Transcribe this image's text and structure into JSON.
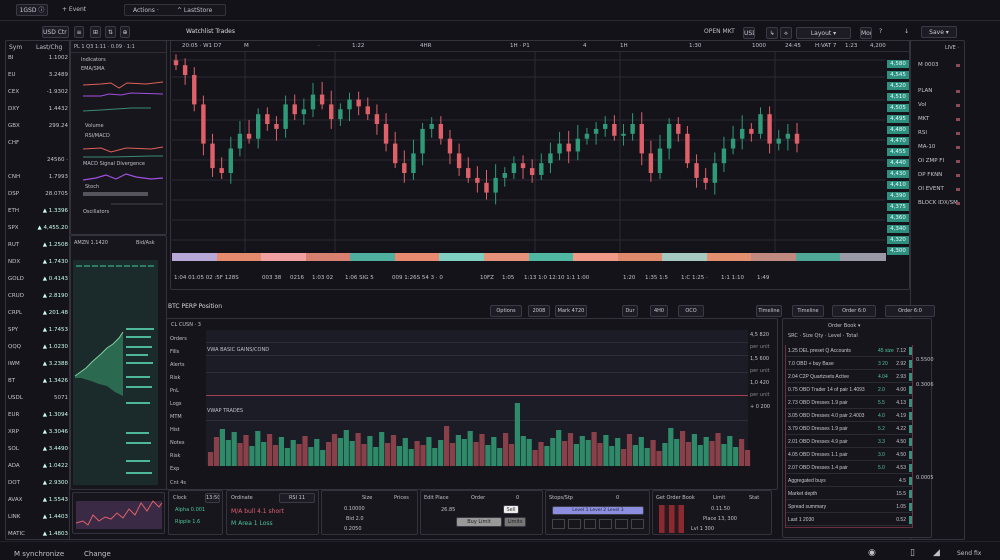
{
  "topbar": {
    "app_label": "1GSD ⓘ",
    "event_label": "+ Event",
    "actions": "Actions ·",
    "last": "^ LastStore"
  },
  "toolbar": {
    "buttons": [
      "USD Ctr ▾",
      "≡",
      "⊞",
      "⇅",
      "⊕"
    ],
    "title": "Watchlist Trades",
    "right": [
      "OPEN MKT",
      "USD",
      "↳",
      "⟡",
      "Layout ▾",
      "More",
      "?",
      "↓",
      "Save ▾"
    ]
  },
  "watchlist": {
    "header": [
      "Sym",
      "Last/Chg"
    ],
    "rows": [
      {
        "s": "BI",
        "v": "1.1002"
      },
      {
        "s": "EU",
        "v": "3.2489"
      },
      {
        "s": "CEX",
        "v": "-1.9302"
      },
      {
        "s": "DXY",
        "v": "1.4432"
      },
      {
        "s": "GBX",
        "v": "299.24"
      },
      {
        "s": "CHF",
        "v": ""
      },
      {
        "s": "",
        "v": "24560 ·"
      },
      {
        "s": "CNH",
        "v": "1.7993"
      },
      {
        "s": "DSP",
        "v": "28.0705"
      },
      {
        "s": "ETH",
        "v": "▲ 1.3396"
      },
      {
        "s": "SPX",
        "v": "▲ 4,455.20"
      },
      {
        "s": "RUT",
        "v": "▲ 1.2508"
      },
      {
        "s": "NDX",
        "v": "▲ 1.7430"
      },
      {
        "s": "GOLD",
        "v": "▲ 0.4143"
      },
      {
        "s": "CRUD",
        "v": "▲ 2.8190"
      },
      {
        "s": "CRPL",
        "v": "▲ 201.48"
      },
      {
        "s": "SPY",
        "v": "▲ 1.7453"
      },
      {
        "s": "QQQ",
        "v": "▲ 1.0230"
      },
      {
        "s": "IWM",
        "v": "▲ 3.2388"
      },
      {
        "s": "BT",
        "v": "▲ 1.3426"
      },
      {
        "s": "USDL",
        "v": "5071"
      },
      {
        "s": "EUR",
        "v": "▲ 1.3094"
      },
      {
        "s": "XRP",
        "v": "▲ 3.3046"
      },
      {
        "s": "SOL",
        "v": "▲ 3.4490"
      },
      {
        "s": "ADA",
        "v": "▲ 1.0422"
      },
      {
        "s": "DOT",
        "v": "▲ 2.9300"
      },
      {
        "s": "AVAX",
        "v": "▲ 1.5543"
      },
      {
        "s": "LINK",
        "v": "▲ 1.4403"
      },
      {
        "s": "MATIC",
        "v": "▲ 1.4803"
      }
    ]
  },
  "indicators": {
    "header": "PL 1 Q3 1:11  ·  0.09  ·  1:1",
    "title": "Indicators",
    "l1": "EMA/SMA",
    "l2": "Volume",
    "l3": "RSI/MACD",
    "l4": "MACD Signal Divergence",
    "l5": "Stoch",
    "l6": "Oscillators"
  },
  "depth": {
    "title": "AMZN 1.1420",
    "right": "Bid/Ask"
  },
  "main": {
    "header": [
      "20:05  ·  W1 D7",
      "M",
      "·",
      "1:22",
      "4HR",
      "1H  ·  P1",
      "4",
      "1H",
      "1:30",
      "1000",
      "24:45",
      "H:VAT 7",
      "1:23",
      "4,200"
    ],
    "price_tags": [
      "4,580",
      "4,545",
      "4,520",
      "4,510",
      "4,505",
      "4,495",
      "4,480",
      "4,470",
      "4,455",
      "4,440",
      "4,430",
      "4,410",
      "4,390",
      "4,375",
      "4,360",
      "4,340",
      "4,320",
      "4,300"
    ],
    "time_labels": [
      "1:04  01:05 02 :5F 128S",
      "003 38",
      "0216",
      "1:03 02",
      "1:06  SIG 5",
      "009  1:26S  54  3  ·  0",
      "10FZ",
      "1:05",
      "1:13  1:0 12:10  1:1  1:00",
      "1:20",
      "1:35 1:5",
      "1:C  1:25 ·",
      "1:1 1:10",
      "1:49"
    ],
    "band_colors": [
      "#b8a8d8",
      "#e58a6c",
      "#f0a0a0",
      "#d88070",
      "#4fb0a0",
      "#e88a70",
      "#7fd0c0",
      "#e6927a",
      "#50b8a0",
      "#f09a88",
      "#e08a6c",
      "#a5c9c0",
      "#e4906e",
      "#c08a80",
      "#4fa898",
      "#9a9aa6"
    ],
    "closes": [
      160,
      150,
      120,
      80,
      55,
      50,
      75,
      90,
      85,
      110,
      100,
      95,
      120,
      110,
      115,
      130,
      120,
      105,
      115,
      125,
      118,
      110,
      100,
      80,
      60,
      50,
      70,
      95,
      100,
      85,
      70,
      55,
      45,
      40,
      30,
      45,
      50,
      60,
      55,
      48,
      60,
      70,
      80,
      72,
      85,
      90,
      95,
      100,
      88,
      90,
      100,
      70,
      50,
      75,
      100,
      90,
      60,
      45,
      40,
      60,
      75,
      85,
      95,
      90,
      110,
      80,
      85,
      90,
      80
    ],
    "up_color": "#2f9a78",
    "down_color": "#e0606a"
  },
  "position": {
    "title": "BTC PERP Position",
    "buttons": [
      "Options",
      "2008",
      "Mark 4720",
      "Dur",
      "4H0",
      "OCO",
      "Timeline",
      "Order 6:0"
    ],
    "side_header": "CL  CUSN  ·  3",
    "side_rows": [
      "Orders",
      "Fills",
      "Alerts",
      "Risk",
      "PnL",
      "Logs",
      "MTM",
      "Hist",
      "Notes",
      "Risk",
      "Exp"
    ],
    "sub_label": "Cnt  4s",
    "chart_label1": "VWA  BASIC GAINS/COND",
    "chart_label2": "VWAP TRADES",
    "price_labels": [
      "4,5 820",
      "per unit",
      "1,5 600",
      "per unit",
      "1,0 420",
      "per unit",
      "+ 0 200"
    ]
  },
  "orderbook": {
    "title": "Order Book ▾",
    "header": "SRC  ·  Size  Qty  ·  Level  ·  Total",
    "rows": [
      {
        "a": "1.25 DEL preset  Q Accounts",
        "b": "45 size",
        "c": "7.12"
      },
      {
        "a": "7.0 OBD  + buy Base",
        "b": "3  20",
        "c": "2.92"
      },
      {
        "a": "2.04 C2P  Quartzsets Active",
        "b": "4.04",
        "c": "2.93"
      },
      {
        "a": "0.75 OBD  Trader 14 of pair 1.4093",
        "b": "2.0",
        "c": "4.00"
      },
      {
        "a": "2.73 OBD  Dresses 1.9 pair",
        "b": "5.5",
        "c": "4.13"
      },
      {
        "a": "3.05 OBD  Dresses 4.0 pair 2.4003",
        "b": "4.0",
        "c": "4.19"
      },
      {
        "a": "3.79 OBD  Dresses 1.9 pair",
        "b": "5.2",
        "c": "4.22"
      },
      {
        "a": "2.01 OBD  Dresses 4.9 pair",
        "b": "3.3",
        "c": "4.50"
      },
      {
        "a": "4.05 OBD  Dresses 1.1 pair",
        "b": "3.0",
        "c": "4.50"
      },
      {
        "a": "2.07 OBD  Dresses 1.4 pair",
        "b": "5.0",
        "c": "4.53"
      },
      {
        "a": "Aggregated buys",
        "b": "",
        "c": "4.5"
      },
      {
        "a": "Market depth",
        "b": "",
        "c": "15.5"
      },
      {
        "a": "Spread summary",
        "b": "",
        "c": "1.05"
      },
      {
        "a": "Last 1 2030",
        "b": "",
        "c": "0.52"
      }
    ],
    "side": [
      "0.5500",
      "0.3006",
      "0.0005"
    ]
  },
  "rightpanel": {
    "header": "LIVE  ·  ",
    "rows": [
      "M 0003",
      "PLAN",
      "Vol",
      "MKT",
      "RSI",
      "MA-10",
      "OI  ZMP  FI",
      "DP FKNN",
      "OI  EVENT",
      "BLOCK  IDX/SM"
    ]
  },
  "widgets": {
    "w1": [
      "Clock",
      "13:50"
    ],
    "w2": [
      "Ordinate",
      "RSI 11"
    ],
    "w3": [
      "Alpha 0.001",
      "Ripple 1.6",
      "M/A bull 4.1 short",
      "M Area 1 Loss"
    ],
    "w4": [
      "Size",
      "Prices",
      "0.10000",
      "Bid 2.0",
      "0.2050"
    ],
    "w5": [
      "Edit Place",
      "Order",
      "0",
      "26.85",
      "Sell",
      "Buy Limit",
      "Limits"
    ],
    "w6": [
      "Stops/Stp",
      "0",
      "Level 1  Level 2  Level 3"
    ],
    "w7": [
      "Get Order Book",
      "Limit",
      "Stat",
      "0.11.50",
      "Place 13, 300",
      "Lvl 1 300"
    ]
  },
  "footer": {
    "left1": "M synchronize",
    "left2": "Change",
    "right": "Send fix"
  }
}
